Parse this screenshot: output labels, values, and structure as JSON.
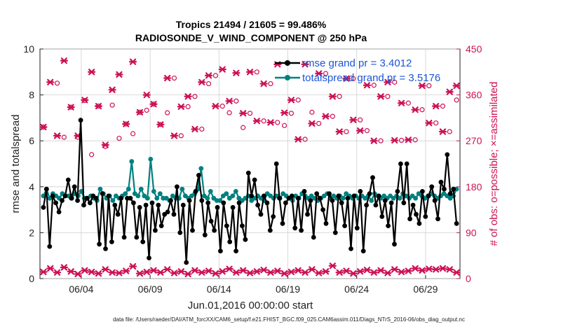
{
  "chart_data": {
    "type": "line",
    "title": "Tropics 21494 / 21605 = 99.486%",
    "subtitle": "RADIOSONDE_V_WIND_COMPONENT @ 250 hPa",
    "xlabel": "Jun.01,2016 00:00:00 start",
    "ylabel": "rmse and totalspread",
    "ylabel_right": "# of obs: o=possible; ×=assimilated",
    "footer": "data file: /Users/raeder/DAI/ATM_forcXX/CAM6_setup/f.e21.FHIST_BGC.f09_025.CAM6assim.011/Diags_NTrS_2016-06/obs_diag_output.nc",
    "x_range_days": [
      0,
      30.5
    ],
    "ylim": [
      0,
      10
    ],
    "ylim_right": [
      0,
      450
    ],
    "x_ticks": [
      {
        "day": 3,
        "label": "06/04"
      },
      {
        "day": 8,
        "label": "06/09"
      },
      {
        "day": 13,
        "label": "06/14"
      },
      {
        "day": 18,
        "label": "06/19"
      },
      {
        "day": 23,
        "label": "06/24"
      },
      {
        "day": 28,
        "label": "06/29"
      }
    ],
    "y_ticks": [
      "0",
      "2",
      "4",
      "6",
      "8",
      "10"
    ],
    "y_ticks_right": [
      "0",
      "90",
      "180",
      "270",
      "360",
      "450"
    ],
    "legend": [
      {
        "label": "rmse grand pr = 3.4012",
        "color": "#000000"
      },
      {
        "label": "totalspread grand pr = 3.5176",
        "color": "#008080"
      }
    ],
    "series": [
      {
        "name": "rmse",
        "color": "#000000",
        "values": [
          3.1,
          3.9,
          1.4,
          3.6,
          3.3,
          2.9,
          3.4,
          3.6,
          4.3,
          3.5,
          4.0,
          3.4,
          6.9,
          3.2,
          3.5,
          3.3,
          3.6,
          3.5,
          1.5,
          3.7,
          1.3,
          3.6,
          1.6,
          3.2,
          2.8,
          3.5,
          1.8,
          3.5,
          3.5,
          3.3,
          1.8,
          3.1,
          1.6,
          3.2,
          0.9,
          3.3,
          2.1,
          3.2,
          2.3,
          2.8,
          2.9,
          3.4,
          2.8,
          4.0,
          2.0,
          3.2,
          0.7,
          3.4,
          2.1,
          3.8,
          4.5,
          3.4,
          1.9,
          3.3,
          2.5,
          2.1,
          3.1,
          1.2,
          3.3,
          2.3,
          1.6,
          3.1,
          1.2,
          3.3,
          2.3,
          1.7,
          4.6,
          3.6,
          4.3,
          3.2,
          2.8,
          3.6,
          3.3,
          2.1,
          2.7,
          5.0,
          3.5,
          2.4,
          3.3,
          3.5,
          3.6,
          2.2,
          3.5,
          2.1,
          3.8,
          2.8,
          3.4,
          1.8,
          3.7,
          3.5,
          3.0,
          2.4,
          3.7,
          3.4,
          2.0,
          3.6,
          3.3,
          2.3,
          3.5,
          1.3,
          3.6,
          2.2,
          3.8,
          1.2,
          3.2,
          3.7,
          4.4,
          3.2,
          3.6,
          2.7,
          3.4,
          2.3,
          3.3,
          1.5,
          3.8,
          5.0,
          3.3,
          5.0,
          2.6,
          3.2,
          2.8,
          2.4,
          3.8,
          2.7,
          3.6,
          4.0,
          3.4,
          2.6,
          4.2,
          3.9,
          5.4,
          3.7,
          3.9,
          2.4
        ]
      },
      {
        "name": "totalspread",
        "color": "#008080",
        "values": [
          3.6,
          3.9,
          3.5,
          3.7,
          3.6,
          3.5,
          3.7,
          3.6,
          3.6,
          3.5,
          3.7,
          3.6,
          3.8,
          3.5,
          3.5,
          3.6,
          3.5,
          3.4,
          3.9,
          3.7,
          3.5,
          3.6,
          3.4,
          3.6,
          3.5,
          3.6,
          3.7,
          3.9,
          5.1,
          3.7,
          3.6,
          3.9,
          3.6,
          3.5,
          5.2,
          3.8,
          3.5,
          3.7,
          3.5,
          3.5,
          3.4,
          3.6,
          3.5,
          3.5,
          3.9,
          3.6,
          3.5,
          3.6,
          3.7,
          3.9,
          4.8,
          3.6,
          3.5,
          3.8,
          3.5,
          3.4,
          3.4,
          3.6,
          3.7,
          3.5,
          3.6,
          3.8,
          3.5,
          3.4,
          3.5,
          3.6,
          3.4,
          3.5,
          3.6,
          3.5,
          3.4,
          3.7,
          3.6,
          3.5,
          3.6,
          3.5,
          3.7,
          3.6,
          3.5,
          3.4,
          3.6,
          3.5,
          3.7,
          3.6,
          3.5,
          3.6,
          3.5,
          3.4,
          3.5,
          3.6,
          3.7,
          3.5,
          3.6,
          3.5,
          3.6,
          3.5,
          3.7,
          3.6,
          3.5,
          3.6,
          3.5,
          3.6,
          3.5,
          3.6,
          3.4,
          3.7,
          3.6,
          3.5,
          3.6,
          3.5,
          3.6,
          3.5,
          3.6,
          3.5,
          3.7,
          3.6,
          3.5,
          3.6,
          3.5,
          3.7,
          3.6,
          3.5,
          3.6,
          3.7,
          3.6,
          3.5,
          3.6,
          3.7,
          3.6,
          3.5,
          3.6,
          3.9
        ]
      },
      {
        "name": "obs possible",
        "axis": "right",
        "color": "#cc1155",
        "day_values": [
          [
            0.25,
            297
          ],
          [
            1.25,
            383
          ],
          [
            1.75,
            277
          ],
          [
            2.25,
            336
          ],
          [
            2.75,
            277
          ],
          [
            3.25,
            349
          ],
          [
            3.75,
            243
          ],
          [
            4.25,
            338
          ],
          [
            4.75,
            259
          ],
          [
            5.25,
            340
          ],
          [
            5.75,
            275
          ],
          [
            6.25,
            303
          ],
          [
            6.75,
            284
          ],
          [
            7.25,
            326
          ],
          [
            7.75,
            330
          ],
          [
            8.25,
            342
          ],
          [
            8.75,
            302
          ],
          [
            9.25,
            325
          ],
          [
            9.75,
            393
          ],
          [
            10.25,
            280
          ],
          [
            10.75,
            337
          ],
          [
            11.25,
            357
          ],
          [
            11.75,
            293
          ],
          [
            12.25,
            382
          ],
          [
            12.75,
            398
          ],
          [
            13.25,
            338
          ],
          [
            13.75,
            325
          ],
          [
            14.25,
            348
          ],
          [
            14.75,
            296
          ],
          [
            15.25,
            324
          ],
          [
            15.75,
            405
          ],
          [
            16.25,
            309
          ],
          [
            16.75,
            382
          ],
          [
            17.25,
            306
          ],
          [
            17.75,
            300
          ],
          [
            18.25,
            324
          ],
          [
            18.75,
            350
          ],
          [
            19.25,
            273
          ],
          [
            19.75,
            326
          ],
          [
            20.25,
            304
          ],
          [
            20.75,
            402
          ],
          [
            21.25,
            318
          ],
          [
            21.75,
            357
          ],
          [
            22.25,
            288
          ],
          [
            22.75,
            392
          ],
          [
            23.25,
            311
          ],
          [
            23.75,
            290
          ],
          [
            24.25,
            379
          ],
          [
            24.75,
            270
          ],
          [
            25.25,
            357
          ],
          [
            25.75,
            385
          ],
          [
            26.25,
            271
          ],
          [
            26.75,
            344
          ],
          [
            27.25,
            272
          ],
          [
            27.75,
            331
          ],
          [
            28.25,
            378
          ],
          [
            28.75,
            305
          ],
          [
            29.25,
            338
          ],
          [
            29.75,
            288
          ],
          [
            30.25,
            350
          ]
        ]
      },
      {
        "name": "obs assimilated",
        "axis": "right",
        "color": "#cc1155",
        "day_values": [
          [
            0.25,
            297
          ],
          [
            0.75,
            385
          ],
          [
            1.25,
            280
          ],
          [
            1.75,
            427
          ],
          [
            2.25,
            336
          ],
          [
            2.75,
            280
          ],
          [
            3.25,
            350
          ],
          [
            3.75,
            405
          ],
          [
            4.25,
            338
          ],
          [
            4.75,
            262
          ],
          [
            5.25,
            370
          ],
          [
            5.75,
            400
          ],
          [
            6.25,
            303
          ],
          [
            6.75,
            425
          ],
          [
            7.25,
            326
          ],
          [
            7.75,
            360
          ],
          [
            8.25,
            342
          ],
          [
            8.75,
            302
          ],
          [
            9.25,
            393
          ],
          [
            9.75,
            280
          ],
          [
            10.25,
            337
          ],
          [
            10.75,
            357
          ],
          [
            11.25,
            293
          ],
          [
            11.75,
            385
          ],
          [
            12.25,
            398
          ],
          [
            12.75,
            338
          ],
          [
            13.25,
            410
          ],
          [
            13.75,
            348
          ],
          [
            14.25,
            403
          ],
          [
            14.75,
            324
          ],
          [
            15.25,
            405
          ],
          [
            15.75,
            309
          ],
          [
            16.25,
            382
          ],
          [
            16.75,
            306
          ],
          [
            17.25,
            420
          ],
          [
            17.75,
            325
          ],
          [
            18.25,
            350
          ],
          [
            18.75,
            273
          ],
          [
            19.25,
            420
          ],
          [
            19.75,
            304
          ],
          [
            20.25,
            402
          ],
          [
            20.75,
            318
          ],
          [
            21.25,
            357
          ],
          [
            21.75,
            288
          ],
          [
            22.25,
            392
          ],
          [
            22.75,
            311
          ],
          [
            23.25,
            290
          ],
          [
            23.75,
            379
          ],
          [
            24.25,
            270
          ],
          [
            24.75,
            357
          ],
          [
            25.25,
            385
          ],
          [
            25.75,
            271
          ],
          [
            26.25,
            344
          ],
          [
            26.75,
            272
          ],
          [
            27.25,
            331
          ],
          [
            27.75,
            378
          ],
          [
            28.25,
            305
          ],
          [
            28.75,
            338
          ],
          [
            29.25,
            288
          ],
          [
            29.75,
            366
          ],
          [
            30.25,
            378
          ]
        ]
      },
      {
        "name": "obs assimilated (low)",
        "axis": "right",
        "color": "#cc1155",
        "day_values": [
          [
            0.25,
            13
          ],
          [
            0.75,
            20
          ],
          [
            1.25,
            12
          ],
          [
            1.75,
            22
          ],
          [
            2.25,
            14
          ],
          [
            2.75,
            9
          ],
          [
            3.25,
            16
          ],
          [
            3.75,
            13
          ],
          [
            4.25,
            10
          ],
          [
            4.75,
            18
          ],
          [
            5.25,
            12
          ],
          [
            5.75,
            11
          ],
          [
            6.25,
            15
          ],
          [
            6.75,
            24
          ],
          [
            7.25,
            10
          ],
          [
            7.75,
            13
          ],
          [
            8.25,
            16
          ],
          [
            8.75,
            12
          ],
          [
            9.25,
            18
          ],
          [
            9.75,
            11
          ],
          [
            10.25,
            14
          ],
          [
            10.75,
            9
          ],
          [
            11.25,
            16
          ],
          [
            11.75,
            12
          ],
          [
            12.25,
            15
          ],
          [
            12.75,
            10
          ],
          [
            13.25,
            14
          ],
          [
            13.75,
            19
          ],
          [
            14.25,
            12
          ],
          [
            14.75,
            16
          ],
          [
            15.25,
            11
          ],
          [
            15.75,
            14
          ],
          [
            16.25,
            17
          ],
          [
            16.75,
            12
          ],
          [
            17.25,
            15
          ],
          [
            17.75,
            10
          ],
          [
            18.25,
            13
          ],
          [
            18.75,
            16
          ],
          [
            19.25,
            12
          ],
          [
            19.75,
            18
          ],
          [
            20.25,
            11
          ],
          [
            20.75,
            14
          ],
          [
            21.25,
            25
          ],
          [
            21.75,
            12
          ],
          [
            22.25,
            15
          ],
          [
            22.75,
            10
          ],
          [
            23.25,
            14
          ],
          [
            23.75,
            17
          ],
          [
            24.25,
            12
          ],
          [
            24.75,
            16
          ],
          [
            25.25,
            11
          ],
          [
            25.75,
            18
          ],
          [
            26.25,
            13
          ],
          [
            26.75,
            15
          ],
          [
            27.25,
            20
          ],
          [
            27.75,
            16
          ],
          [
            28.25,
            19
          ],
          [
            28.75,
            18
          ],
          [
            29.25,
            20
          ],
          [
            29.75,
            18
          ],
          [
            30.25,
            12
          ]
        ]
      }
    ]
  }
}
